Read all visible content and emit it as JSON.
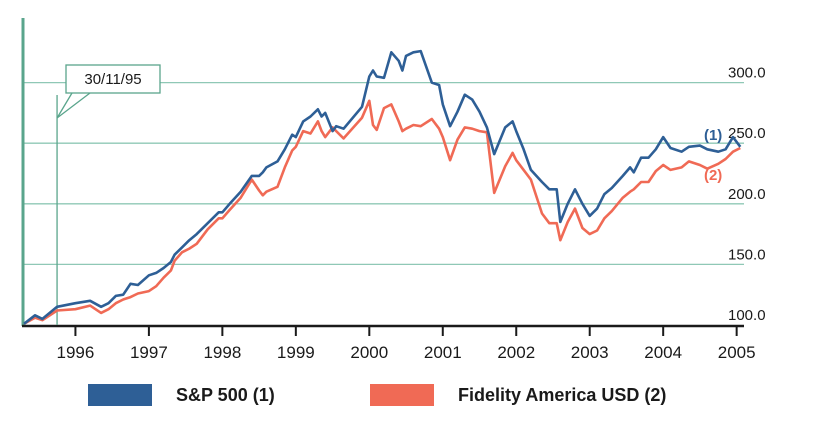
{
  "chart_data": {
    "type": "line",
    "title": "",
    "xlabel": "",
    "ylabel": "",
    "ylim": [
      100,
      350
    ],
    "xlim": [
      1995.3,
      2005.1
    ],
    "grid": true,
    "y_ticks": [
      100,
      150,
      200,
      250,
      300
    ],
    "y_tick_labels": [
      "100.0",
      "150.0",
      "200.0",
      "250.0",
      "300.0"
    ],
    "x_ticks": [
      1996,
      1997,
      1998,
      1999,
      2000,
      2001,
      2002,
      2003,
      2004,
      2005
    ],
    "x_tick_labels": [
      "1996",
      "1997",
      "1998",
      "1999",
      "2000",
      "2001",
      "2002",
      "2003",
      "2004",
      "2005"
    ],
    "annotation": {
      "label": "30/11/95",
      "x": 1995.75
    },
    "series": [
      {
        "name": "S&P 500 (1)",
        "end_label": "(1)",
        "color": "#2e5f96",
        "x": [
          1995.3,
          1995.45,
          1995.55,
          1995.75,
          1996.0,
          1996.2,
          1996.35,
          1996.45,
          1996.55,
          1996.65,
          1996.75,
          1996.85,
          1997.0,
          1997.1,
          1997.2,
          1997.3,
          1997.35,
          1997.45,
          1997.55,
          1997.65,
          1997.8,
          1997.95,
          1998.0,
          1998.1,
          1998.25,
          1998.4,
          1998.5,
          1998.55,
          1998.6,
          1998.75,
          1998.85,
          1998.95,
          1999.0,
          1999.1,
          1999.2,
          1999.3,
          1999.35,
          1999.4,
          1999.5,
          1999.55,
          1999.65,
          1999.9,
          2000.0,
          2000.05,
          2000.1,
          2000.2,
          2000.3,
          2000.4,
          2000.45,
          2000.5,
          2000.6,
          2000.7,
          2000.85,
          2000.95,
          2001.0,
          2001.1,
          2001.2,
          2001.3,
          2001.4,
          2001.5,
          2001.6,
          2001.7,
          2001.85,
          2001.95,
          2002.0,
          2002.1,
          2002.2,
          2002.35,
          2002.45,
          2002.55,
          2002.6,
          2002.7,
          2002.8,
          2002.9,
          2003.0,
          2003.1,
          2003.2,
          2003.3,
          2003.45,
          2003.55,
          2003.6,
          2003.7,
          2003.8,
          2003.9,
          2004.0,
          2004.1,
          2004.25,
          2004.35,
          2004.5,
          2004.6,
          2004.75,
          2004.85,
          2004.95,
          2005.05
        ],
        "values": [
          101,
          108,
          105,
          115,
          118,
          120,
          115,
          118,
          124,
          125,
          134,
          133,
          141,
          143,
          147,
          152,
          158,
          164,
          170,
          175,
          184,
          193,
          193,
          200,
          210,
          223,
          223,
          226,
          230,
          235,
          245,
          257,
          255,
          268,
          272,
          278,
          272,
          275,
          260,
          264,
          262,
          280,
          305,
          310,
          305,
          304,
          325,
          318,
          310,
          322,
          325,
          326,
          300,
          298,
          282,
          264,
          276,
          290,
          286,
          276,
          263,
          241,
          263,
          268,
          260,
          245,
          228,
          218,
          212,
          212,
          185,
          200,
          212,
          200,
          190,
          196,
          208,
          213,
          223,
          230,
          226,
          238,
          238,
          245,
          255,
          246,
          243,
          247,
          248,
          245,
          243,
          245,
          255,
          247
        ]
      },
      {
        "name": "Fidelity America USD (2)",
        "end_label": "(2)",
        "color": "#f06a55",
        "x": [
          1995.3,
          1995.45,
          1995.55,
          1995.75,
          1996.0,
          1996.2,
          1996.35,
          1996.45,
          1996.55,
          1996.65,
          1996.75,
          1996.85,
          1997.0,
          1997.1,
          1997.2,
          1997.3,
          1997.35,
          1997.45,
          1997.55,
          1997.65,
          1997.8,
          1997.95,
          1998.0,
          1998.1,
          1998.25,
          1998.4,
          1998.5,
          1998.55,
          1998.6,
          1998.75,
          1998.85,
          1998.95,
          1999.0,
          1999.1,
          1999.2,
          1999.3,
          1999.35,
          1999.4,
          1999.5,
          1999.55,
          1999.65,
          1999.9,
          2000.0,
          2000.05,
          2000.1,
          2000.2,
          2000.3,
          2000.4,
          2000.45,
          2000.5,
          2000.6,
          2000.7,
          2000.85,
          2000.95,
          2001.0,
          2001.1,
          2001.2,
          2001.3,
          2001.4,
          2001.5,
          2001.6,
          2001.7,
          2001.85,
          2001.95,
          2002.0,
          2002.1,
          2002.2,
          2002.35,
          2002.45,
          2002.55,
          2002.6,
          2002.7,
          2002.8,
          2002.9,
          2003.0,
          2003.1,
          2003.2,
          2003.3,
          2003.45,
          2003.55,
          2003.6,
          2003.7,
          2003.8,
          2003.9,
          2004.0,
          2004.1,
          2004.25,
          2004.35,
          2004.5,
          2004.6,
          2004.75,
          2004.85,
          2004.95,
          2005.05
        ],
        "values": [
          101,
          106,
          104,
          112,
          113,
          116,
          110,
          113,
          118,
          121,
          123,
          126,
          128,
          132,
          139,
          145,
          153,
          160,
          163,
          167,
          179,
          188,
          188,
          195,
          205,
          220,
          211,
          207,
          210,
          214,
          230,
          244,
          247,
          260,
          258,
          268,
          260,
          255,
          263,
          260,
          254,
          271,
          285,
          265,
          261,
          279,
          282,
          268,
          260,
          262,
          265,
          264,
          270,
          262,
          255,
          236,
          253,
          263,
          262,
          260,
          259,
          209,
          231,
          242,
          236,
          228,
          220,
          192,
          184,
          184,
          170,
          185,
          196,
          180,
          175,
          178,
          188,
          194,
          205,
          210,
          212,
          218,
          218,
          227,
          232,
          228,
          230,
          235,
          232,
          229,
          233,
          237,
          243,
          246
        ]
      }
    ],
    "legend": {
      "position": "bottom"
    }
  }
}
